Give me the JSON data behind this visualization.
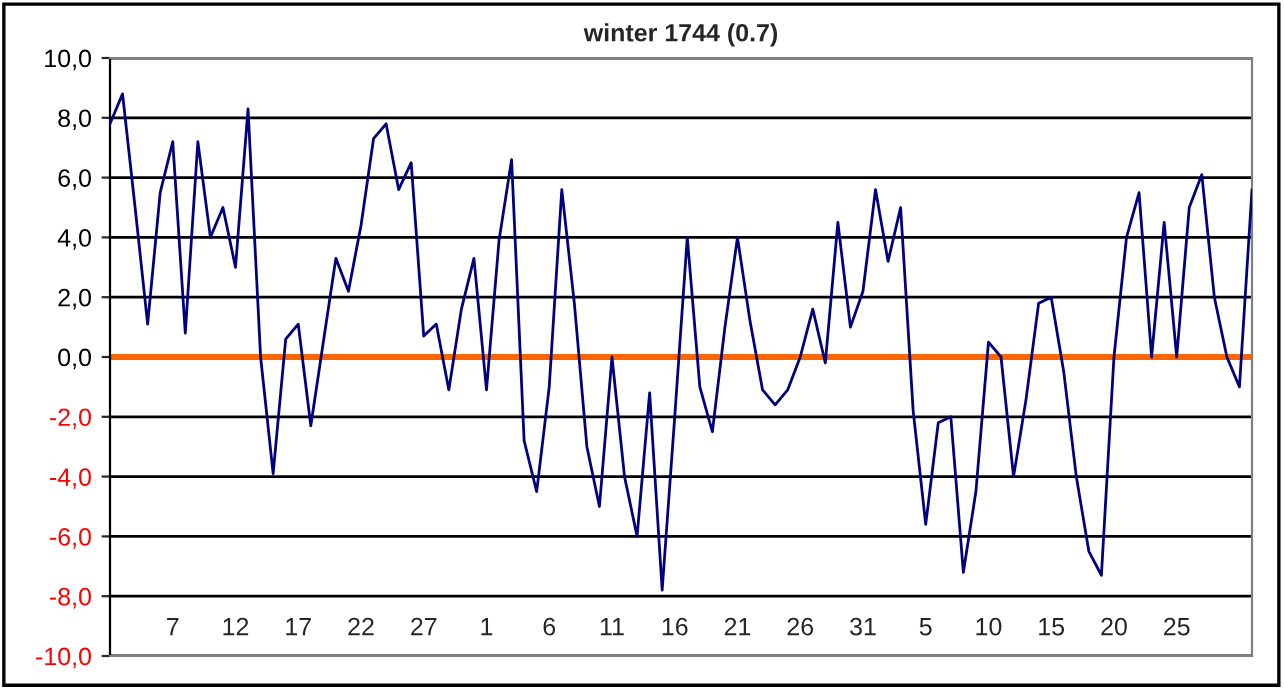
{
  "chart_data": {
    "type": "line",
    "title": "winter 1744 (0.7)",
    "categories": [
      null,
      null,
      null,
      null,
      null,
      "7",
      null,
      null,
      null,
      null,
      "12",
      null,
      null,
      null,
      null,
      "17",
      null,
      null,
      null,
      null,
      "22",
      null,
      null,
      null,
      null,
      "27",
      null,
      null,
      null,
      null,
      "1",
      null,
      null,
      null,
      null,
      "6",
      null,
      null,
      null,
      null,
      "11",
      null,
      null,
      null,
      null,
      "16",
      null,
      null,
      null,
      null,
      "21",
      null,
      null,
      null,
      null,
      "26",
      null,
      null,
      null,
      null,
      "31",
      null,
      null,
      null,
      null,
      "5",
      null,
      null,
      null,
      null,
      "10",
      null,
      null,
      null,
      null,
      "15",
      null,
      null,
      null,
      null,
      "20",
      null,
      null,
      null,
      null,
      "25",
      null,
      null,
      null,
      null,
      null,
      null
    ],
    "series": [
      {
        "color": "#000080",
        "values": [
          7.8,
          8.8,
          5.0,
          1.1,
          5.5,
          7.2,
          0.8,
          7.2,
          4.0,
          5.0,
          3.0,
          8.3,
          0.0,
          -3.9,
          0.6,
          1.1,
          -2.3,
          0.5,
          3.3,
          2.2,
          4.4,
          7.3,
          7.8,
          5.6,
          6.5,
          0.7,
          1.1,
          -1.1,
          1.6,
          3.3,
          -1.1,
          3.9,
          6.6,
          -2.8,
          -4.5,
          -1.0,
          5.6,
          1.8,
          -3.0,
          -5.0,
          0.0,
          -4.0,
          -6.0,
          -1.2,
          -7.8,
          -2.0,
          4.0,
          -1.0,
          -2.5,
          1.0,
          4.0,
          1.2,
          -1.1,
          -1.6,
          -1.1,
          0.0,
          1.6,
          -0.2,
          4.5,
          1.0,
          2.2,
          5.6,
          3.2,
          5.0,
          -1.8,
          -5.6,
          -2.2,
          -2.0,
          -7.2,
          -4.5,
          0.5,
          0.0,
          -4.0,
          -1.4,
          1.8,
          2.0,
          -0.5,
          -4.0,
          -6.5,
          -7.3,
          0.0,
          4.0,
          5.5,
          0.0,
          4.5,
          0.0,
          5.0,
          6.1,
          2.0,
          0.0,
          -1.0,
          5.6
        ]
      }
    ],
    "ylim": [
      -10,
      10
    ],
    "yticks": [
      {
        "value": -10,
        "label": "-10,0"
      },
      {
        "value": -8,
        "label": "-8,0"
      },
      {
        "value": -6,
        "label": "-6,0"
      },
      {
        "value": -4,
        "label": "-4,0"
      },
      {
        "value": -2,
        "label": "-2,0"
      },
      {
        "value": 0,
        "label": "0,0"
      },
      {
        "value": 2,
        "label": "2,0"
      },
      {
        "value": 4,
        "label": "4,0"
      },
      {
        "value": 6,
        "label": "6,0"
      },
      {
        "value": 8,
        "label": "8,0"
      },
      {
        "value": 10,
        "label": "10,0"
      }
    ],
    "ref_lines": [
      {
        "axis": "y",
        "value": 0,
        "color": "#ff6600"
      }
    ],
    "grid": "y",
    "marker": "none",
    "line_style": "solid",
    "legend": false
  }
}
